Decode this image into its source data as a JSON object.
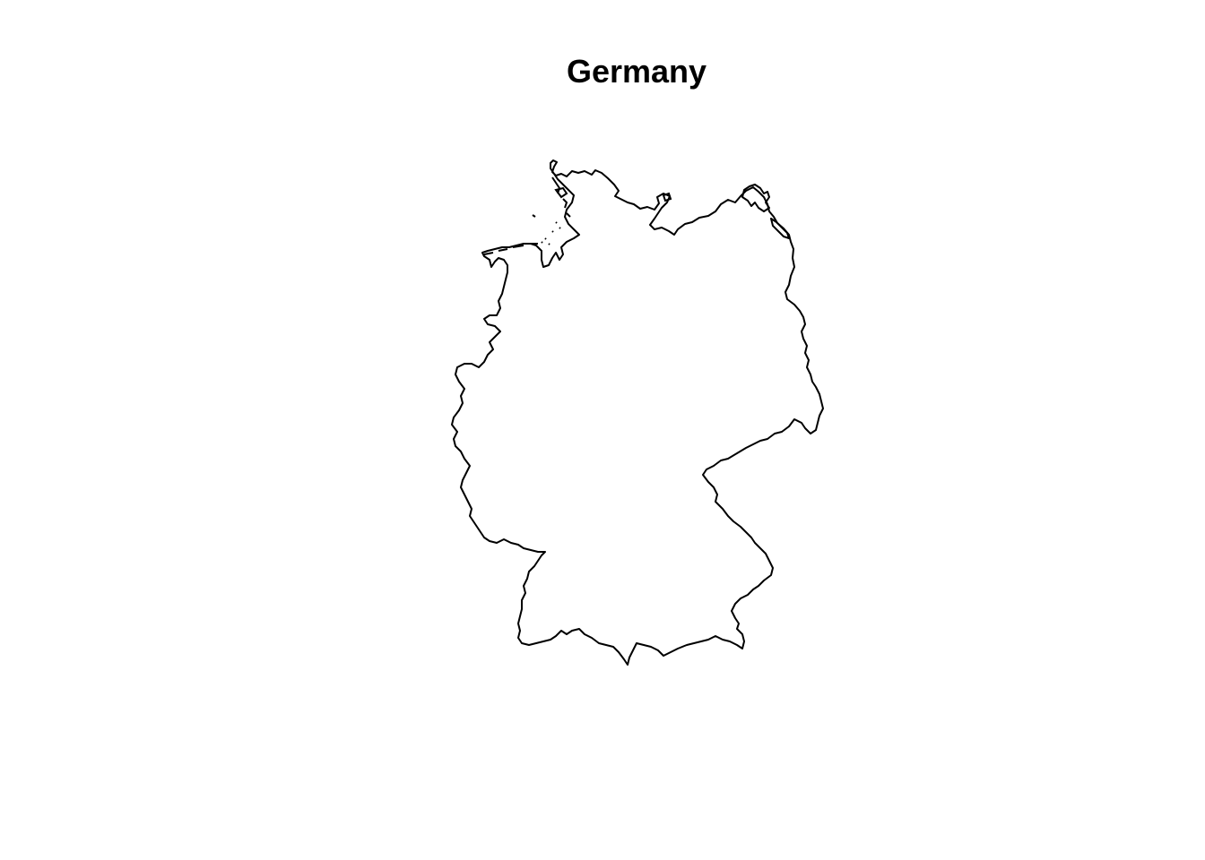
{
  "map": {
    "title": "Germany",
    "outline_color": "#000000",
    "background_color": "#ffffff"
  }
}
